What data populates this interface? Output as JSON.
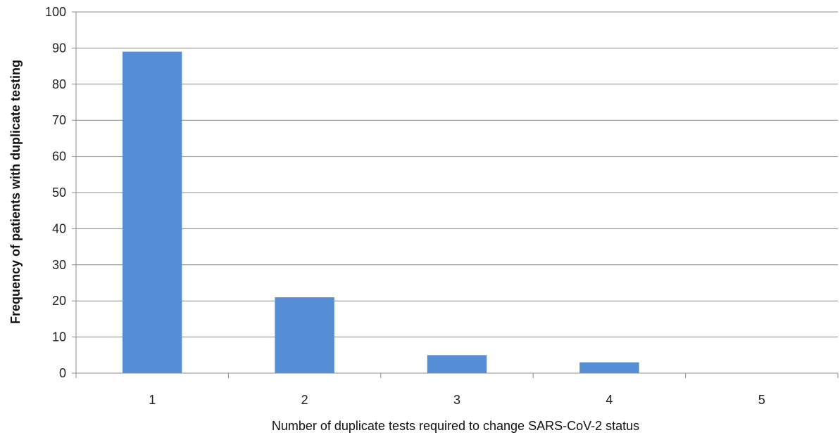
{
  "chart_data": {
    "type": "bar",
    "categories": [
      "1",
      "2",
      "3",
      "4",
      "5"
    ],
    "values": [
      89,
      21,
      5,
      3,
      0
    ],
    "title": "",
    "xlabel": "Number of duplicate tests required to change  SARS-CoV-2 status",
    "ylabel": "Frequency of  patients with duplicate testing",
    "ylim": [
      0,
      100
    ],
    "yticks": [
      0,
      10,
      20,
      30,
      40,
      50,
      60,
      70,
      80,
      90,
      100
    ],
    "grid": true,
    "legend": "none",
    "colors": {
      "bar": "#558ED5",
      "grid": "#8c8c8c",
      "axis": "#8c8c8c"
    }
  }
}
